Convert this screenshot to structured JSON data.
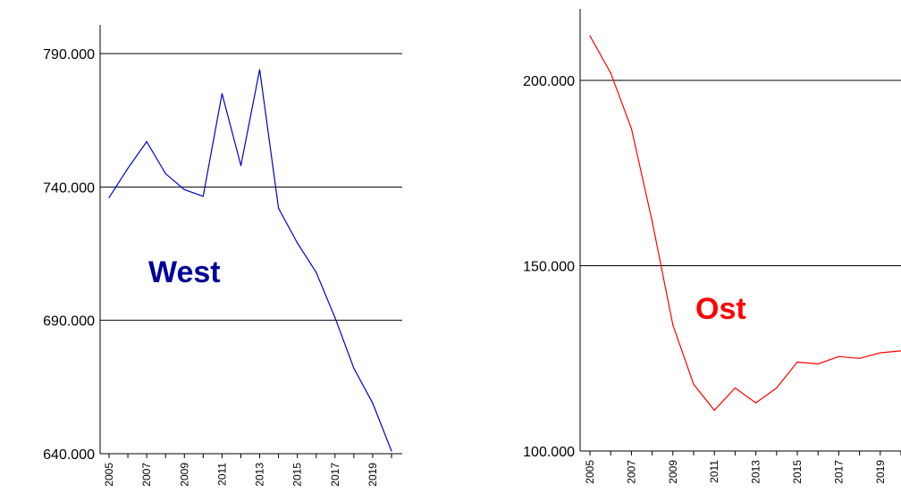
{
  "chart_data": [
    {
      "type": "line",
      "annotation": "West",
      "ylim": [
        640000,
        790000
      ],
      "yticks": [
        640000,
        690000,
        740000,
        790000
      ],
      "ytick_labels": [
        "640.000",
        "690.000",
        "740.000",
        "790.000"
      ],
      "xlim": [
        2005,
        2020
      ],
      "xtick_labels": [
        "2005",
        "2007",
        "2009",
        "2011",
        "2013",
        "2015",
        "2017",
        "2019"
      ],
      "grid": "horizontal",
      "series": [
        {
          "color": "#0000cc",
          "x": [
            2005,
            2006,
            2007,
            2008,
            2009,
            2010,
            2011,
            2012,
            2013,
            2014,
            2015,
            2016,
            2017,
            2018,
            2019,
            2020
          ],
          "values": [
            736000,
            747000,
            757000,
            745000,
            739000,
            736500,
            775000,
            748000,
            784000,
            732000,
            719000,
            708000,
            691000,
            672000,
            659000,
            641000
          ]
        }
      ],
      "annotation_color": "#000099"
    },
    {
      "type": "line",
      "annotation": "Ost",
      "ylim": [
        100000,
        220000
      ],
      "yticks": [
        100000,
        150000,
        200000
      ],
      "ytick_labels": [
        "100.000",
        "150.000",
        "200.000"
      ],
      "xlim": [
        2005,
        2020
      ],
      "xtick_labels": [
        "2005",
        "2007",
        "2009",
        "2011",
        "2013",
        "2015",
        "2017",
        "2019"
      ],
      "grid": "horizontal",
      "series": [
        {
          "color": "#ff0000",
          "x": [
            2005,
            2006,
            2007,
            2008,
            2009,
            2010,
            2011,
            2012,
            2013,
            2014,
            2015,
            2016,
            2017,
            2018,
            2019,
            2020
          ],
          "values": [
            212000,
            202000,
            187000,
            162000,
            134000,
            118000,
            111000,
            117000,
            113000,
            117000,
            124000,
            123500,
            125500,
            125000,
            126500,
            127000
          ]
        }
      ],
      "annotation_color": "#ff0000"
    }
  ]
}
